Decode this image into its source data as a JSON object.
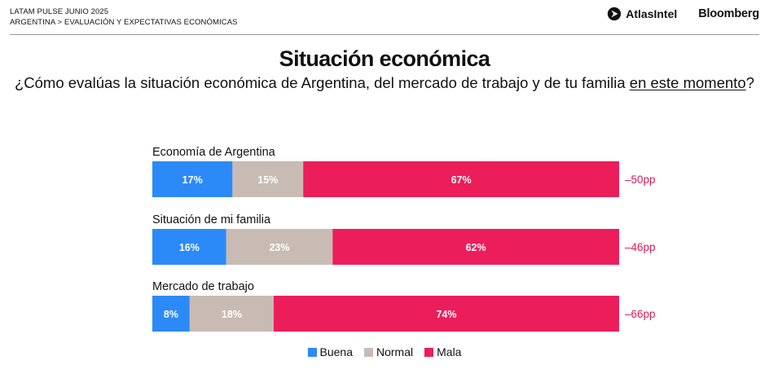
{
  "header": {
    "line1": "LATAM PULSE JUNIO 2025",
    "line2": "ARGENTINA > EVALUACIÓN Y EXPECTATIVAS ECONÓMICAS",
    "atlas_logo": "AtlasIntel",
    "bloomberg_logo": "Bloomberg"
  },
  "title": "Situación económica",
  "subtitle_part1": "¿Cómo evalúas la situación económica de Argentina, del mercado de trabajo y de tu familia ",
  "subtitle_underlined": "en este momento",
  "subtitle_part2": "?",
  "colors": {
    "buena": "#2b8af7",
    "normal": "#c8bbb3",
    "mala": "#ec1d5b",
    "net": "#d91b57"
  },
  "chart_data": {
    "type": "bar",
    "orientation": "horizontal",
    "stacked": true,
    "categories": [
      "Economía de Argentina",
      "Situación de mi familia",
      "Mercado de trabajo"
    ],
    "series": [
      {
        "name": "Buena",
        "values": [
          17,
          16,
          8
        ]
      },
      {
        "name": "Normal",
        "values": [
          15,
          23,
          18
        ]
      },
      {
        "name": "Mala",
        "values": [
          67,
          62,
          74
        ]
      }
    ],
    "value_labels": [
      [
        "17%",
        "15%",
        "67%"
      ],
      [
        "16%",
        "23%",
        "62%"
      ],
      [
        "8%",
        "18%",
        "74%"
      ]
    ],
    "net_labels": [
      "–50pp",
      "–46pp",
      "–66pp"
    ],
    "legend_position": "bottom",
    "grid": false
  }
}
